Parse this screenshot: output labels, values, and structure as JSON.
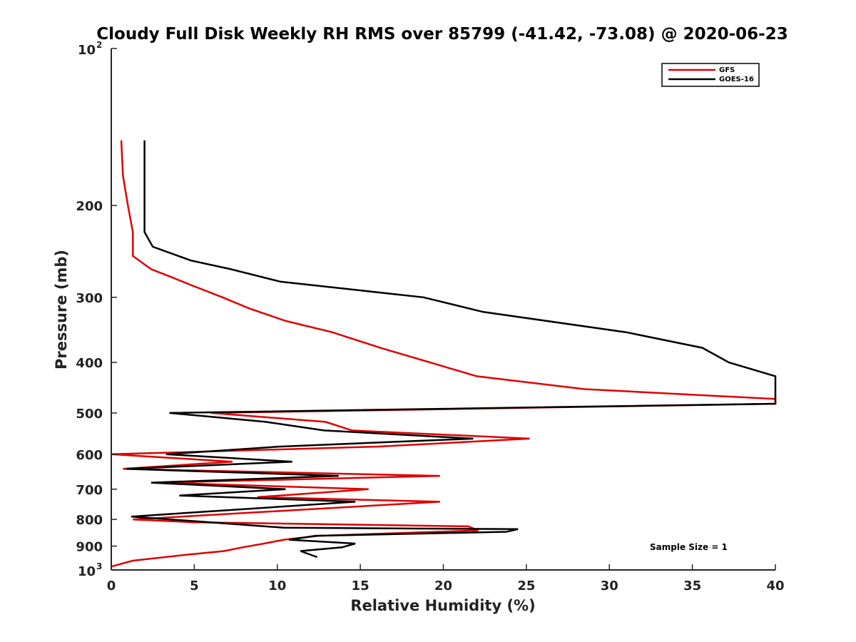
{
  "chart_data": {
    "type": "line",
    "title": "Cloudy Full Disk Weekly RH RMS over 85799 (-41.42, -73.08) @ 2020-06-23",
    "xlabel": "Relative Humidity (%)",
    "ylabel": "Pressure (mb)",
    "xlim": [
      0,
      40
    ],
    "ylim": [
      100,
      1000
    ],
    "y_scale": "log",
    "y_reversed": true,
    "x_ticks": [
      0,
      5,
      10,
      15,
      20,
      25,
      30,
      35,
      40
    ],
    "y_ticks": [
      {
        "value": 100,
        "base": "10",
        "exp": "2"
      },
      {
        "value": 200,
        "label": "200"
      },
      {
        "value": 300,
        "label": "300"
      },
      {
        "value": 400,
        "label": "400"
      },
      {
        "value": 500,
        "label": "500"
      },
      {
        "value": 600,
        "label": "600"
      },
      {
        "value": 700,
        "label": "700"
      },
      {
        "value": 800,
        "label": "800"
      },
      {
        "value": 900,
        "label": "900"
      },
      {
        "value": 1000,
        "base": "10",
        "exp": "3"
      }
    ],
    "grid": false,
    "legend_position": "top-right",
    "annotation": "Sample Size = 1",
    "series": [
      {
        "name": "GFS",
        "color": "#e00000",
        "points": [
          [
            0.6,
            150
          ],
          [
            0.7,
            175
          ],
          [
            1.0,
            200
          ],
          [
            1.3,
            225
          ],
          [
            1.3,
            250
          ],
          [
            2.4,
            265
          ],
          [
            3.7,
            275
          ],
          [
            4.9,
            285
          ],
          [
            6.7,
            300
          ],
          [
            8.3,
            315
          ],
          [
            10.5,
            333
          ],
          [
            13.3,
            350
          ],
          [
            16.2,
            375
          ],
          [
            19.2,
            400
          ],
          [
            22.0,
            425
          ],
          [
            28.5,
            450
          ],
          [
            40.0,
            470
          ],
          [
            40.0,
            480
          ],
          [
            6.0,
            500
          ],
          [
            12.9,
            520
          ],
          [
            14.5,
            540
          ],
          [
            25.2,
            560
          ],
          [
            16.0,
            580
          ],
          [
            0.0,
            600
          ],
          [
            7.3,
            620
          ],
          [
            0.7,
            640
          ],
          [
            19.8,
            660
          ],
          [
            3.0,
            680
          ],
          [
            15.5,
            700
          ],
          [
            8.8,
            725
          ],
          [
            19.8,
            740
          ],
          [
            1.3,
            800
          ],
          [
            4.9,
            810
          ],
          [
            21.5,
            825
          ],
          [
            22.1,
            840
          ],
          [
            12.5,
            860
          ],
          [
            10.4,
            875
          ],
          [
            9.2,
            890
          ],
          [
            7.9,
            905
          ],
          [
            6.8,
            920
          ],
          [
            4.5,
            935
          ],
          [
            1.3,
            960
          ],
          [
            0.0,
            985
          ]
        ]
      },
      {
        "name": "GOES-16",
        "color": "#000000",
        "points": [
          [
            2.0,
            150
          ],
          [
            2.0,
            175
          ],
          [
            2.0,
            200
          ],
          [
            2.0,
            225
          ],
          [
            2.5,
            240
          ],
          [
            4.8,
            255
          ],
          [
            7.2,
            265
          ],
          [
            10.2,
            280
          ],
          [
            18.8,
            300
          ],
          [
            22.4,
            320
          ],
          [
            31.0,
            350
          ],
          [
            35.6,
            375
          ],
          [
            37.2,
            400
          ],
          [
            40.0,
            425
          ],
          [
            40.0,
            480
          ],
          [
            3.5,
            500
          ],
          [
            9.3,
            520
          ],
          [
            12.8,
            540
          ],
          [
            21.8,
            560
          ],
          [
            10.1,
            580
          ],
          [
            3.3,
            600
          ],
          [
            10.9,
            620
          ],
          [
            0.9,
            640
          ],
          [
            13.7,
            660
          ],
          [
            2.4,
            680
          ],
          [
            10.5,
            700
          ],
          [
            4.1,
            720
          ],
          [
            14.7,
            740
          ],
          [
            1.2,
            790
          ],
          [
            10.4,
            830
          ],
          [
            24.5,
            835
          ],
          [
            23.8,
            845
          ],
          [
            12.3,
            860
          ],
          [
            10.7,
            875
          ],
          [
            14.7,
            890
          ],
          [
            13.9,
            905
          ],
          [
            11.4,
            920
          ],
          [
            12.4,
            945
          ]
        ]
      }
    ]
  }
}
